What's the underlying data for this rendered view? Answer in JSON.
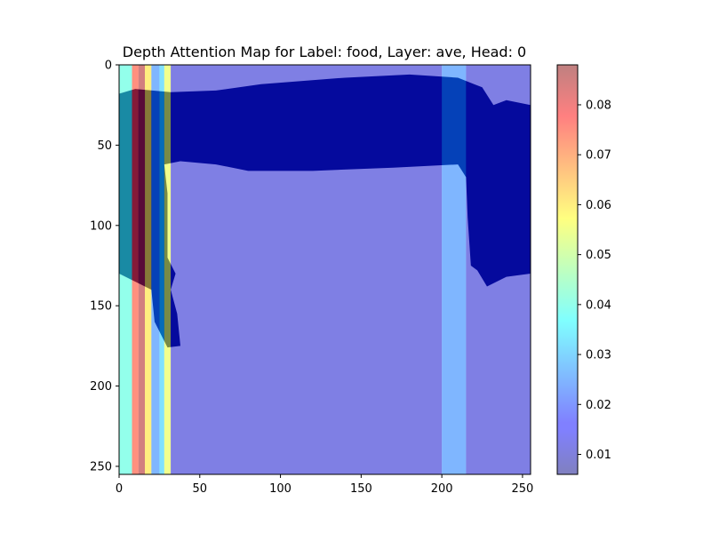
{
  "chart_data": {
    "type": "heatmap",
    "title": "Depth Attention Map for Label: food, Layer: ave, Head: 0",
    "xlabel": "",
    "ylabel": "",
    "xlim": [
      0,
      255
    ],
    "ylim": [
      255,
      0
    ],
    "x_ticks": [
      0,
      50,
      100,
      150,
      200,
      250
    ],
    "y_ticks": [
      0,
      50,
      100,
      150,
      200,
      250
    ],
    "colorbar": {
      "colormap": "jet",
      "alpha": 0.5,
      "range": [
        0.006,
        0.088
      ],
      "ticks": [
        0.01,
        0.02,
        0.03,
        0.04,
        0.05,
        0.06,
        0.07,
        0.08
      ],
      "tick_labels": [
        "0.01",
        "0.02",
        "0.03",
        "0.04",
        "0.05",
        "0.06",
        "0.07",
        "0.08"
      ]
    },
    "column_attention": [
      {
        "x0": 0,
        "x1": 8,
        "value": 0.04
      },
      {
        "x0": 8,
        "x1": 12,
        "value": 0.075
      },
      {
        "x0": 12,
        "x1": 16,
        "value": 0.085
      },
      {
        "x0": 16,
        "x1": 20,
        "value": 0.06
      },
      {
        "x0": 20,
        "x1": 25,
        "value": 0.025
      },
      {
        "x0": 25,
        "x1": 28,
        "value": 0.032
      },
      {
        "x0": 28,
        "x1": 32,
        "value": 0.055
      },
      {
        "x0": 32,
        "x1": 200,
        "value": 0.012
      },
      {
        "x0": 200,
        "x1": 215,
        "value": 0.025
      },
      {
        "x0": 215,
        "x1": 255,
        "value": 0.012
      }
    ],
    "depth_regions": [
      {
        "name": "dark-depth-region",
        "color": "#0b1470",
        "points": [
          [
            0,
            18
          ],
          [
            10,
            15
          ],
          [
            32,
            17
          ],
          [
            60,
            16
          ],
          [
            88,
            12
          ],
          [
            140,
            8
          ],
          [
            180,
            6
          ],
          [
            210,
            8
          ],
          [
            220,
            12
          ],
          [
            225,
            14
          ],
          [
            232,
            25
          ],
          [
            240,
            22
          ],
          [
            255,
            25
          ],
          [
            255,
            130
          ],
          [
            240,
            132
          ],
          [
            228,
            138
          ],
          [
            222,
            128
          ],
          [
            218,
            125
          ],
          [
            216,
            95
          ],
          [
            215,
            70
          ],
          [
            210,
            62
          ],
          [
            170,
            64
          ],
          [
            120,
            66
          ],
          [
            80,
            66
          ],
          [
            60,
            62
          ],
          [
            38,
            60
          ],
          [
            28,
            62
          ],
          [
            30,
            80
          ],
          [
            30,
            120
          ],
          [
            35,
            130
          ],
          [
            32,
            140
          ],
          [
            36,
            155
          ],
          [
            38,
            175
          ],
          [
            30,
            176
          ],
          [
            22,
            160
          ],
          [
            20,
            140
          ],
          [
            0,
            130
          ]
        ]
      }
    ]
  }
}
